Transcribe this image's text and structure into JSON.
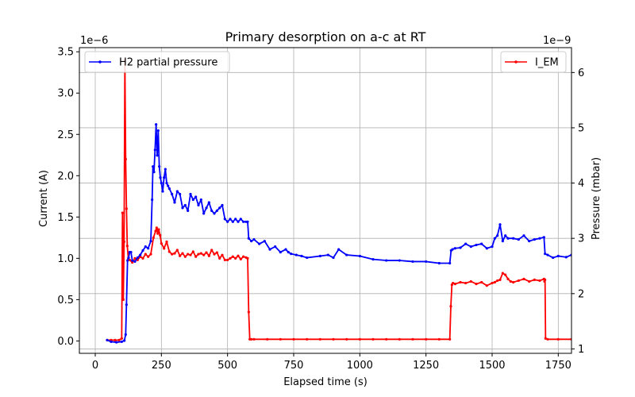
{
  "chart_data": {
    "type": "line",
    "title": "Primary desorption on a-c at RT",
    "xlabel": "Elapsed time (s)",
    "ylabel_left": "Current (A)",
    "ylabel_right": "Pressure (mbar)",
    "left_offset_label": "1e−6",
    "right_offset_label": "1e−9",
    "xlim": [
      -60,
      1800
    ],
    "ylim_left": [
      -0.15,
      3.55
    ],
    "ylim_right": [
      0.92,
      6.45
    ],
    "xticks": [
      0,
      250,
      500,
      750,
      1000,
      1250,
      1500,
      1750
    ],
    "yticks_left": [
      0.0,
      0.5,
      1.0,
      1.5,
      2.0,
      2.5,
      3.0,
      3.5
    ],
    "yticks_right": [
      1,
      2,
      3,
      4,
      5,
      6
    ],
    "grid": true,
    "legend_left": {
      "placement": "top-left",
      "label": "H2 partial pressure"
    },
    "legend_right": {
      "placement": "top-right",
      "label": "I_EM"
    },
    "colors": {
      "h2": "#0000ff",
      "iem": "#ff0000",
      "grid": "#b0b0b0",
      "axis": "#000000"
    },
    "series": [
      {
        "name": "I_EM",
        "axis": "left",
        "x": [
          45,
          60,
          75,
          90,
          100,
          103,
          106,
          109,
          112,
          115,
          118,
          121,
          125,
          130,
          140,
          150,
          160,
          170,
          180,
          190,
          200,
          210,
          220,
          228,
          232,
          236,
          240,
          245,
          250,
          260,
          270,
          280,
          290,
          300,
          310,
          320,
          330,
          340,
          350,
          360,
          370,
          380,
          390,
          400,
          410,
          420,
          430,
          440,
          450,
          460,
          470,
          480,
          490,
          500,
          510,
          520,
          530,
          540,
          550,
          560,
          570,
          576,
          580,
          584,
          590,
          600,
          650,
          700,
          750,
          800,
          850,
          900,
          950,
          1000,
          1050,
          1100,
          1150,
          1200,
          1250,
          1300,
          1340,
          1344,
          1348,
          1352,
          1360,
          1380,
          1400,
          1420,
          1440,
          1460,
          1480,
          1500,
          1510,
          1520,
          1530,
          1540,
          1550,
          1560,
          1570,
          1580,
          1600,
          1620,
          1640,
          1660,
          1680,
          1696,
          1698,
          1700,
          1702,
          1710,
          1750,
          1800
        ],
        "y": [
          0.01,
          0.01,
          0.01,
          0.01,
          0.03,
          1.55,
          0.5,
          1.2,
          3.4,
          2.2,
          1.6,
          1.15,
          1.0,
          0.98,
          0.95,
          1.0,
          0.98,
          1.02,
          1.0,
          1.05,
          1.02,
          1.05,
          1.25,
          1.33,
          1.37,
          1.3,
          1.35,
          1.28,
          1.18,
          1.12,
          1.2,
          1.08,
          1.05,
          1.06,
          1.1,
          1.03,
          1.06,
          1.02,
          1.05,
          1.04,
          1.08,
          1.02,
          1.05,
          1.06,
          1.04,
          1.07,
          1.03,
          1.1,
          1.05,
          1.07,
          1.0,
          1.04,
          0.98,
          0.98,
          1.0,
          1.02,
          1.0,
          1.03,
          0.99,
          1.02,
          1.01,
          1.0,
          0.35,
          0.02,
          0.02,
          0.02,
          0.02,
          0.02,
          0.02,
          0.02,
          0.02,
          0.02,
          0.02,
          0.02,
          0.02,
          0.02,
          0.02,
          0.02,
          0.02,
          0.02,
          0.02,
          0.42,
          0.68,
          0.7,
          0.69,
          0.71,
          0.7,
          0.72,
          0.69,
          0.71,
          0.67,
          0.7,
          0.71,
          0.73,
          0.74,
          0.82,
          0.8,
          0.75,
          0.72,
          0.71,
          0.73,
          0.75,
          0.72,
          0.74,
          0.73,
          0.75,
          0.72,
          0.74,
          0.03,
          0.02,
          0.02,
          0.02
        ]
      },
      {
        "name": "H2 partial pressure",
        "axis": "right",
        "x": [
          45,
          60,
          80,
          100,
          110,
          115,
          118,
          122,
          126,
          130,
          135,
          140,
          150,
          160,
          170,
          180,
          190,
          200,
          210,
          215,
          218,
          222,
          226,
          230,
          234,
          238,
          242,
          246,
          250,
          255,
          260,
          265,
          270,
          275,
          280,
          290,
          300,
          310,
          320,
          330,
          340,
          350,
          360,
          370,
          380,
          390,
          400,
          410,
          420,
          430,
          440,
          450,
          460,
          470,
          480,
          490,
          500,
          510,
          520,
          530,
          540,
          550,
          560,
          570,
          576,
          580,
          590,
          600,
          620,
          640,
          660,
          680,
          700,
          720,
          730,
          740,
          760,
          780,
          800,
          850,
          880,
          900,
          920,
          950,
          1000,
          1050,
          1100,
          1150,
          1200,
          1250,
          1300,
          1340,
          1345,
          1350,
          1360,
          1380,
          1400,
          1420,
          1440,
          1460,
          1480,
          1500,
          1510,
          1520,
          1530,
          1540,
          1550,
          1560,
          1580,
          1600,
          1620,
          1640,
          1660,
          1680,
          1696,
          1700,
          1710,
          1730,
          1750,
          1780,
          1800
        ],
        "y": [
          1.16,
          1.13,
          1.12,
          1.13,
          1.15,
          1.26,
          1.8,
          2.6,
          2.65,
          2.75,
          2.75,
          2.6,
          2.58,
          2.65,
          2.7,
          2.78,
          2.85,
          2.82,
          2.95,
          3.7,
          4.3,
          4.2,
          4.6,
          5.06,
          4.5,
          4.95,
          4.3,
          4.1,
          4.0,
          3.85,
          4.1,
          4.25,
          4.0,
          3.95,
          3.9,
          3.8,
          3.65,
          3.85,
          3.8,
          3.55,
          3.6,
          3.5,
          3.8,
          3.7,
          3.75,
          3.6,
          3.7,
          3.45,
          3.55,
          3.65,
          3.5,
          3.45,
          3.5,
          3.55,
          3.6,
          3.35,
          3.3,
          3.35,
          3.3,
          3.35,
          3.3,
          3.35,
          3.3,
          3.3,
          3.3,
          3.0,
          2.95,
          2.98,
          2.9,
          2.95,
          2.8,
          2.85,
          2.75,
          2.8,
          2.75,
          2.72,
          2.7,
          2.68,
          2.65,
          2.68,
          2.7,
          2.65,
          2.8,
          2.7,
          2.68,
          2.62,
          2.6,
          2.6,
          2.58,
          2.58,
          2.55,
          2.55,
          2.78,
          2.8,
          2.82,
          2.83,
          2.9,
          2.85,
          2.88,
          2.9,
          2.82,
          2.85,
          3.0,
          3.05,
          3.25,
          2.95,
          3.05,
          3.0,
          3.0,
          2.98,
          3.05,
          2.95,
          2.98,
          3.0,
          3.02,
          2.72,
          2.7,
          2.65,
          2.68,
          2.66,
          2.7
        ]
      }
    ]
  }
}
